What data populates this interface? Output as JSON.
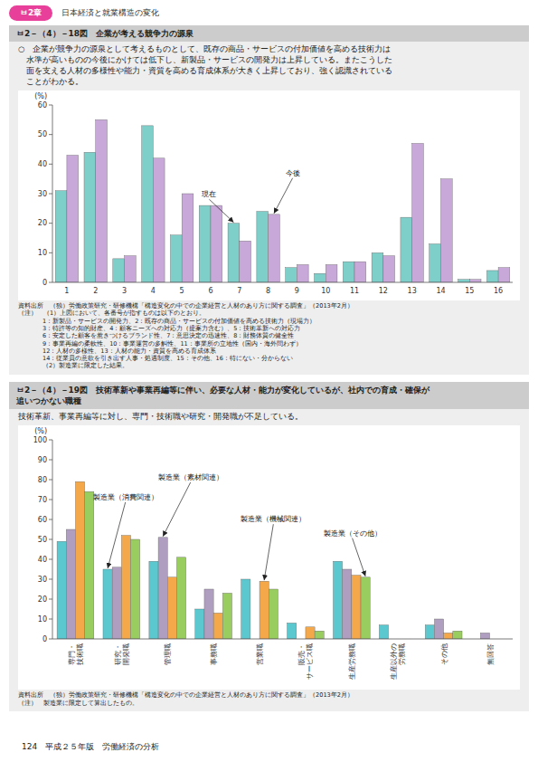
{
  "header_chapter": "ㅂ2章",
  "header_title": "日本経済と就業構造の変化",
  "page_text": "124　平成２５年版　労働経済の分析",
  "chart_data": [
    {
      "type": "bar",
      "title": "ㅂ2－（4）－18図　企業が考える競争力の源泉",
      "subtitle": "○　企業が競争力の源泉として考えるものとして、既存の商品・サービスの付加価値を高める技術力は\n　水準が高いものの今後にかけては低下し、新製品・サービスの開発力は上昇している。またこうした\n　面を支える人材の多様性や能力・資質を高める育成体系が大きく上昇しており、強く認識されている\n　ことがわかる。",
      "categories": [
        "1",
        "2",
        "3",
        "4",
        "5",
        "6",
        "7",
        "8",
        "9",
        "10",
        "11",
        "12",
        "13",
        "14",
        "15",
        "16"
      ],
      "series": [
        {
          "name": "現在",
          "color": "#7ececa",
          "values": [
            31,
            44,
            8,
            53,
            16,
            26,
            20,
            24,
            5,
            3,
            7,
            10,
            22,
            13,
            1,
            4
          ]
        },
        {
          "name": "今後",
          "color": "#c8a8d8",
          "values": [
            43,
            55,
            9,
            42,
            30,
            26,
            14,
            23,
            6,
            6,
            7,
            9,
            47,
            35,
            1,
            5
          ]
        }
      ],
      "ylabel": "(%)",
      "ylim": [
        0,
        60
      ],
      "yticks": [
        0,
        10,
        20,
        30,
        40,
        50,
        60
      ],
      "source": "資料出所　（独）労働政策研究・研修機構「構造変化の中での企業経営と人材のあり方に関する調査」（2013年2月）",
      "notes": [
        "（注）　（1）上図において、各番号が指すものは以下のとおり。",
        "1：新製品・サービスの開発力、2：既存の商品・サービスの付加価値を高める技術力（現場力）",
        "3：特許等の知的財産、4：顧客ニーズへの対応力（提案力含む）、5：技術革新への対応力",
        "6：安定した顧客を惹きつけるブランド性、7：意思決定の迅速性、8：財務体質の健全性",
        "9：事業再編の柔軟性、10：事業運営の多觓性、11：事業所の立地性（国内・海外問わず）",
        "12：人材の多様性、13：人材の能力・資質を高める育成体系",
        "14：従業員の意欲を引き出す人事・処遇制度、15：その他、16：特にない・分からない",
        "（2）製造業に限定した結果。"
      ]
    },
    {
      "type": "bar",
      "title": "ㅂ2－（4）－19図　技術革新や事業再編等に伴い、必要な人材・能力が変化しているが、社内での育成・確保が\n追いつかない職種",
      "subtitle": "技術革新、事業再編等に対し、専門・技術職や研究・開発職が不足している。",
      "categories": [
        "専門・\n技術職",
        "研究・\n開発職",
        "管理職",
        "事務職",
        "営業職",
        "販売・\nサービス職",
        "生産労務職",
        "生産以外の\n労務職",
        "その他",
        "無回答"
      ],
      "series": [
        {
          "name": "製造業（消費関連）",
          "color": "#5bc8d0",
          "values": [
            49,
            35,
            39,
            15,
            30,
            8,
            39,
            7,
            7,
            0
          ]
        },
        {
          "name": "製造業（素材関連）",
          "color": "#b09ec0",
          "values": [
            55,
            36,
            51,
            25,
            0,
            0,
            35,
            0,
            10,
            3
          ]
        },
        {
          "name": "製造業（機械関連）",
          "color": "#f4a84a",
          "values": [
            79,
            52,
            31,
            13,
            29,
            6,
            32,
            0,
            3,
            0
          ]
        },
        {
          "name": "製造業（その他）",
          "color": "#9acd60",
          "values": [
            74,
            50,
            41,
            23,
            25,
            4,
            31,
            0,
            4,
            0
          ]
        }
      ],
      "ylabel": "(%)",
      "ylim": [
        0,
        100
      ],
      "yticks": [
        0,
        10,
        20,
        30,
        40,
        50,
        60,
        70,
        80,
        90,
        100
      ],
      "source": "資料出所　（独）労働政策研究・研修機構「構造変化の中での企業経営と人材のあり方に関する調査」（2013年2月）",
      "notes": [
        "（注）　製造業に限定して算出したもの。"
      ]
    }
  ]
}
